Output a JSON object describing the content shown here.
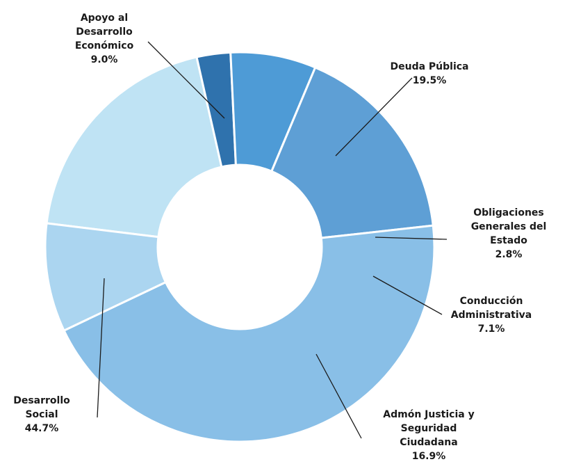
{
  "chart_data": {
    "type": "pie",
    "title": "",
    "legend": "none",
    "slices": [
      {
        "label_lines": [
          "Deuda Pública"
        ],
        "value": 19.5,
        "value_label": "19.5%",
        "color": "#bfe3f4"
      },
      {
        "label_lines": [
          "Obligaciones",
          "Generales del",
          "Estado"
        ],
        "value": 2.8,
        "value_label": "2.8%",
        "color": "#2f72ad"
      },
      {
        "label_lines": [
          "Conducción",
          "Administrativa"
        ],
        "value": 7.1,
        "value_label": "7.1%",
        "color": "#4e9bd6"
      },
      {
        "label_lines": [
          "Admón Justicia y",
          "Seguridad",
          "Ciudadana"
        ],
        "value": 16.9,
        "value_label": "16.9%",
        "color": "#5e9fd5"
      },
      {
        "label_lines": [
          "Desarrollo",
          "Social"
        ],
        "value": 44.7,
        "value_label": "44.7%",
        "color": "#89bfe7"
      },
      {
        "label_lines": [
          "Apoyo al",
          "Desarrollo",
          "Económico"
        ],
        "value": 9.0,
        "value_label": "9.0%",
        "color": "#abd5f0"
      }
    ]
  }
}
